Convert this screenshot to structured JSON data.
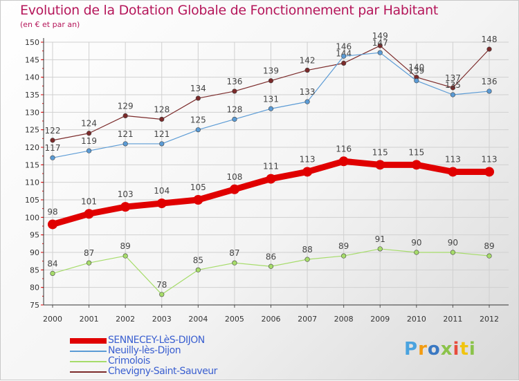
{
  "title": "Evolution de la Dotation Globale de Fonctionnement par Habitant",
  "subtitle": "(en € et par an)",
  "logo": {
    "text": "Proxiti",
    "letters": [
      "P",
      "r",
      "o",
      "x",
      "i",
      "t",
      "i"
    ],
    "colors": [
      "#4aa3df",
      "#f39c12",
      "#3a78c2",
      "#8bc34a",
      "#e74c3c",
      "#f1c40f",
      "#8bc34a"
    ]
  },
  "chart_data": {
    "type": "line",
    "title": "Evolution de la Dotation Globale de Fonctionnement par Habitant",
    "subtitle": "(en € et par an)",
    "x": [
      "2000",
      "2001",
      "2002",
      "2003",
      "2004",
      "2005",
      "2006",
      "2007",
      "2008",
      "2009",
      "2010",
      "2011",
      "2012"
    ],
    "ylim": [
      75,
      150
    ],
    "yticks": [
      75,
      80,
      85,
      90,
      95,
      100,
      105,
      110,
      115,
      120,
      125,
      130,
      135,
      140,
      145,
      150
    ],
    "grid": true,
    "legend_position": "bottom-left",
    "series": [
      {
        "name": "SENNECEY-LèS-DIJON",
        "color": "#e00000",
        "values": [
          98,
          101,
          103,
          104,
          105,
          108,
          111,
          113,
          116,
          115,
          115,
          113,
          113
        ]
      },
      {
        "name": "Neuilly-lès-Dijon",
        "color": "#5b9bd5",
        "values": [
          117,
          119,
          121,
          121,
          125,
          128,
          131,
          133,
          146,
          147,
          139,
          135,
          136
        ]
      },
      {
        "name": "Crimolois",
        "color": "#a6dc6a",
        "values": [
          84,
          87,
          89,
          78,
          85,
          87,
          86,
          88,
          89,
          91,
          90,
          90,
          89
        ]
      },
      {
        "name": "Chevigny-Saint-Sauveur",
        "color": "#7b2a2a",
        "values": [
          122,
          124,
          129,
          128,
          134,
          136,
          139,
          142,
          144,
          149,
          140,
          137,
          148
        ]
      }
    ]
  }
}
